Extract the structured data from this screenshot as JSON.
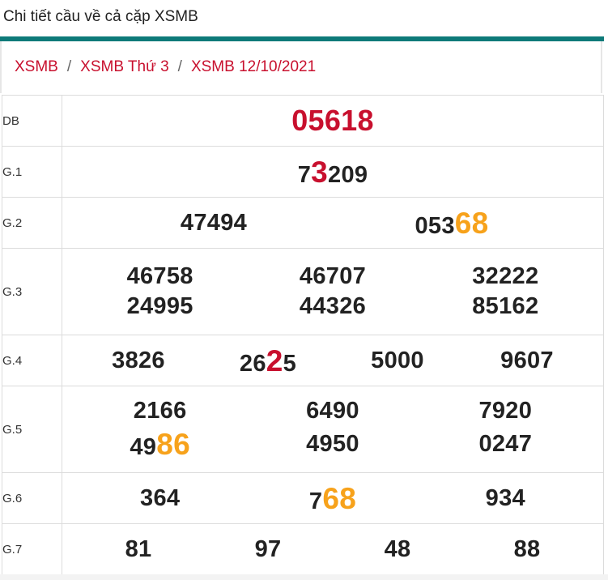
{
  "page": {
    "title": "Chi tiết cầu về cả cặp XSMB"
  },
  "breadcrumb": [
    {
      "label": "XSMB"
    },
    {
      "label": "XSMB Thứ 3"
    },
    {
      "label": "XSMB 12/10/2021"
    }
  ],
  "breadcrumb_separator": "/",
  "colors": {
    "accent_teal": "#0e7a79",
    "highlight_red": "#c8102e",
    "highlight_orange": "#f7a21b"
  },
  "prizes": [
    {
      "label": "DB",
      "columns": 1,
      "numbers": [
        {
          "text": "05618",
          "special": true
        }
      ]
    },
    {
      "label": "G.1",
      "columns": 1,
      "numbers": [
        {
          "pre": "7",
          "hl": "3",
          "post": "209",
          "hl_color": "red"
        }
      ]
    },
    {
      "label": "G.2",
      "columns": 2,
      "numbers": [
        {
          "text": "47494"
        },
        {
          "pre": "053",
          "hl": "68",
          "post": "",
          "hl_color": "orange"
        }
      ]
    },
    {
      "label": "G.3",
      "columns": 3,
      "numbers": [
        {
          "text": "46758"
        },
        {
          "text": "46707"
        },
        {
          "text": "32222"
        },
        {
          "text": "24995"
        },
        {
          "text": "44326"
        },
        {
          "text": "85162"
        }
      ]
    },
    {
      "label": "G.4",
      "columns": 4,
      "numbers": [
        {
          "text": "3826"
        },
        {
          "pre": "26",
          "hl": "2",
          "post": "5",
          "hl_color": "red"
        },
        {
          "text": "5000"
        },
        {
          "text": "9607"
        }
      ]
    },
    {
      "label": "G.5",
      "columns": 3,
      "numbers": [
        {
          "text": "2166"
        },
        {
          "text": "6490"
        },
        {
          "text": "7920"
        },
        {
          "pre": "49",
          "hl": "86",
          "post": "",
          "hl_color": "orange"
        },
        {
          "text": "4950"
        },
        {
          "text": "0247"
        }
      ]
    },
    {
      "label": "G.6",
      "columns": 3,
      "numbers": [
        {
          "text": "364"
        },
        {
          "pre": "7",
          "hl": "68",
          "post": "",
          "hl_color": "orange"
        },
        {
          "text": "934"
        }
      ]
    },
    {
      "label": "G.7",
      "columns": 4,
      "numbers": [
        {
          "text": "81"
        },
        {
          "text": "97"
        },
        {
          "text": "48"
        },
        {
          "text": "88"
        }
      ]
    }
  ]
}
